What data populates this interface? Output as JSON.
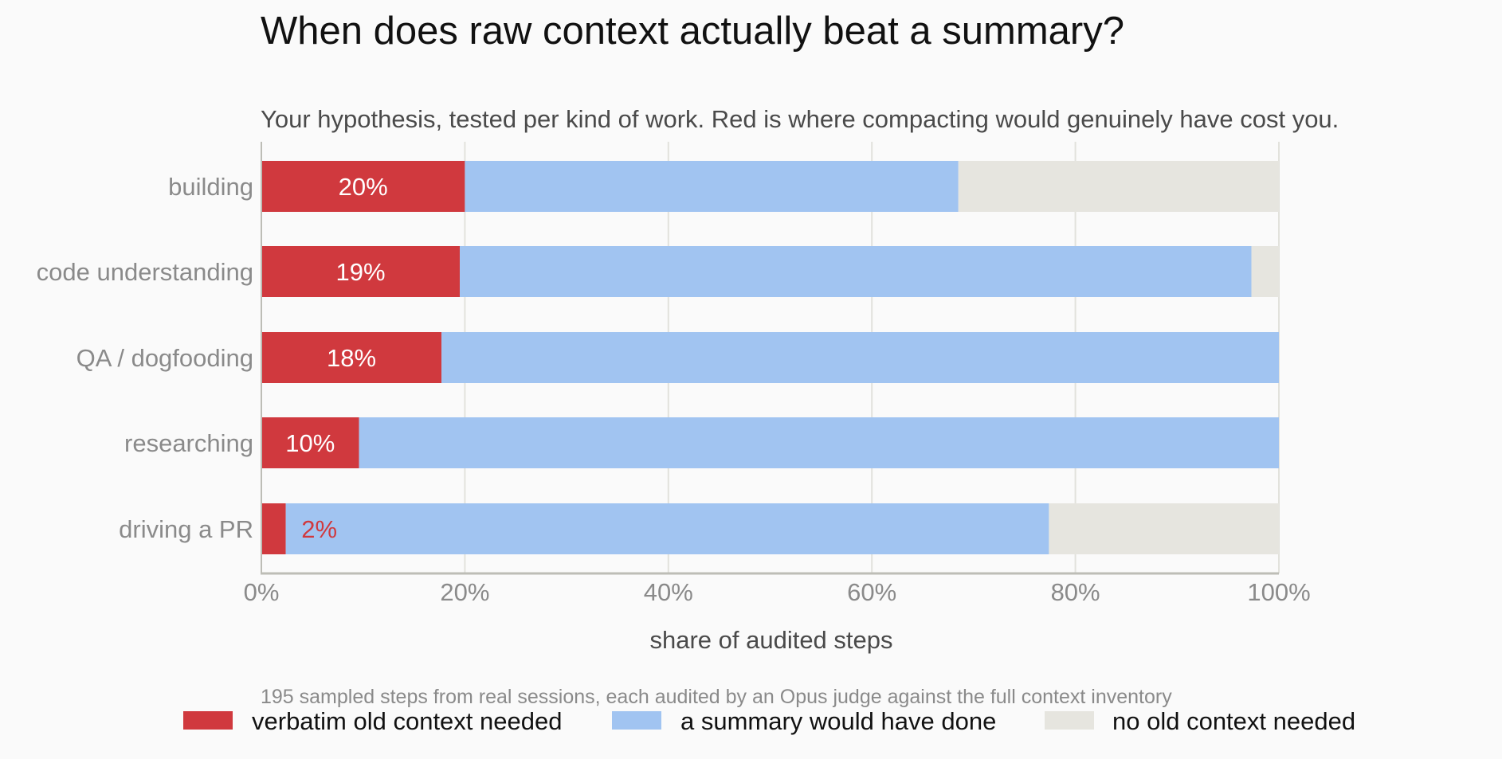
{
  "chart_data": {
    "type": "bar",
    "orientation": "horizontal",
    "stacked": true,
    "title": "When does raw context actually beat a summary?",
    "subtitle": "Your hypothesis, tested per kind of work. Red is where compacting would genuinely have cost you.",
    "categories": [
      "building",
      "code understanding",
      "QA / dogfooding",
      "researching",
      "driving a PR"
    ],
    "series": [
      {
        "name": "verbatim old context needed",
        "color": "#d0393e",
        "values": [
          20,
          19.5,
          17.7,
          9.6,
          2.4
        ]
      },
      {
        "name": "a summary would have done",
        "color": "#a1c4f1",
        "values": [
          48.5,
          77.8,
          82.3,
          90.4,
          75
        ]
      },
      {
        "name": "no old context needed",
        "color": "#e6e5df",
        "values": [
          31.5,
          2.7,
          0,
          0,
          22.6
        ]
      }
    ],
    "data_labels": [
      "20%",
      "19%",
      "18%",
      "10%",
      "2%"
    ],
    "xlabel": "share of audited steps",
    "xlim": [
      0,
      100
    ],
    "xticks": [
      0,
      20,
      40,
      60,
      80,
      100
    ],
    "xtick_labels": [
      "0%",
      "20%",
      "40%",
      "60%",
      "80%",
      "100%"
    ],
    "grid": true,
    "legend_position": "bottom",
    "note": "195 sampled steps from real sessions, each audited by an Opus judge against the full context inventory"
  }
}
